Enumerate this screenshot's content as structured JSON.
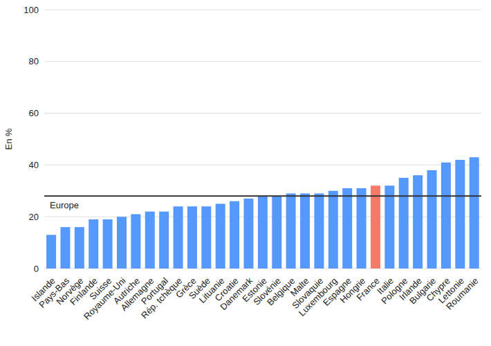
{
  "chart_data": {
    "type": "bar",
    "y_label": "En %",
    "categories": [
      "Islande",
      "Pays-Bas",
      "Norvège",
      "Finlande",
      "Suisse",
      "Royaume-Uni",
      "Autriche",
      "Allemagne",
      "Portugal",
      "Rép. tchèque",
      "Grèce",
      "Suède",
      "Lituanie",
      "Croatie",
      "Danemark",
      "Estonie",
      "Slovénie",
      "Belgique",
      "Malte",
      "Slovaquie",
      "Luxembourg",
      "Espagne",
      "Hongrie",
      "France",
      "Italie",
      "Pologne",
      "Irlande",
      "Bulgarie",
      "Chypre",
      "Lettonie",
      "Roumanie"
    ],
    "values": [
      13,
      16,
      16,
      19,
      19,
      20,
      21,
      22,
      22,
      24,
      24,
      24,
      25,
      26,
      27,
      28,
      28,
      29,
      29,
      29,
      30,
      31,
      31,
      32,
      32,
      35,
      36,
      38,
      41,
      42,
      43
    ],
    "colors": [
      "#5599ff",
      "#5599ff",
      "#5599ff",
      "#5599ff",
      "#5599ff",
      "#5599ff",
      "#5599ff",
      "#5599ff",
      "#5599ff",
      "#5599ff",
      "#5599ff",
      "#5599ff",
      "#5599ff",
      "#5599ff",
      "#5599ff",
      "#5599ff",
      "#5599ff",
      "#5599ff",
      "#5599ff",
      "#5599ff",
      "#5599ff",
      "#5599ff",
      "#5599ff",
      "#f47a6a",
      "#5599ff",
      "#5599ff",
      "#5599ff",
      "#5599ff",
      "#5599ff",
      "#5599ff",
      "#5599ff"
    ],
    "annotations": [
      {
        "text": "Europe",
        "value": 28
      }
    ],
    "ylim": [
      0,
      100
    ],
    "yticks": [
      0,
      20,
      40,
      60,
      80,
      100
    ],
    "grid": true
  }
}
